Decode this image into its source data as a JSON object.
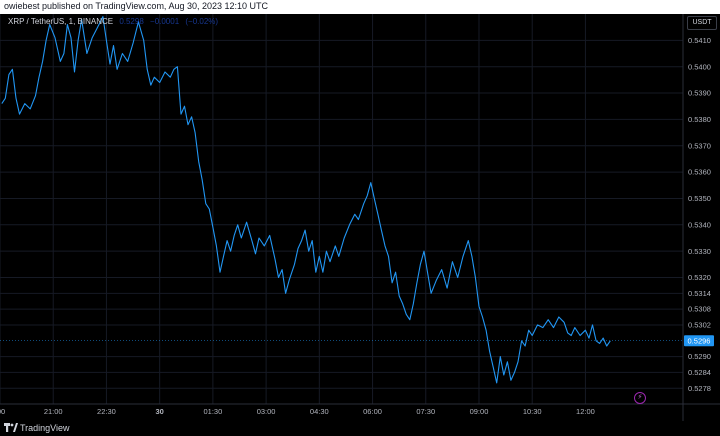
{
  "header": {
    "published_text": "owiebest published on TradingView.com, Aug 30, 2023 12:10 UTC"
  },
  "legend": {
    "symbol_text": "XRP / TetherUS, 1, BINANCE",
    "open": "0.5298",
    "change": "−0.0001",
    "change_pct": "(−0.02%)"
  },
  "currency_label": "USDT",
  "footer": {
    "brand": "TradingView"
  },
  "colors": {
    "line": "#2196f3",
    "price_tag": "#2196f3",
    "grid": "#161a25",
    "background": "#000000"
  },
  "icons": {
    "logo": "tradingview-logo-icon",
    "alert": "lightning-icon"
  },
  "chart_data": {
    "type": "line",
    "symbol": "XRP / TetherUS",
    "interval": "1",
    "exchange": "BINANCE",
    "ylim": [
      0.5272,
      0.542
    ],
    "current_price": 0.5296,
    "current_price_label": "0.5296",
    "y_ticks": [
      {
        "value": 0.541,
        "label": "0.5410"
      },
      {
        "value": 0.54,
        "label": "0.5400"
      },
      {
        "value": 0.539,
        "label": "0.5390"
      },
      {
        "value": 0.538,
        "label": "0.5380"
      },
      {
        "value": 0.537,
        "label": "0.5370"
      },
      {
        "value": 0.536,
        "label": "0.5360"
      },
      {
        "value": 0.535,
        "label": "0.5350"
      },
      {
        "value": 0.534,
        "label": "0.5340"
      },
      {
        "value": 0.533,
        "label": "0.5330"
      },
      {
        "value": 0.532,
        "label": "0.5320"
      },
      {
        "value": 0.5314,
        "label": "0.5314"
      },
      {
        "value": 0.5308,
        "label": "0.5308"
      },
      {
        "value": 0.5302,
        "label": "0.5302"
      },
      {
        "value": 0.529,
        "label": "0.5290"
      },
      {
        "value": 0.5284,
        "label": "0.5284"
      },
      {
        "value": 0.5278,
        "label": "0.5278"
      }
    ],
    "x_ticks": [
      {
        "hours": 0.0,
        "label": ":00",
        "bold": false
      },
      {
        "hours": 1.5,
        "label": "21:00",
        "bold": false
      },
      {
        "hours": 3.0,
        "label": "22:30",
        "bold": false
      },
      {
        "hours": 4.5,
        "label": "30",
        "bold": true
      },
      {
        "hours": 6.0,
        "label": "01:30",
        "bold": false
      },
      {
        "hours": 7.5,
        "label": "03:00",
        "bold": false
      },
      {
        "hours": 9.0,
        "label": "04:30",
        "bold": false
      },
      {
        "hours": 10.5,
        "label": "06:00",
        "bold": false
      },
      {
        "hours": 12.0,
        "label": "07:30",
        "bold": false
      },
      {
        "hours": 13.5,
        "label": "09:00",
        "bold": false
      },
      {
        "hours": 15.0,
        "label": "10:30",
        "bold": false
      },
      {
        "hours": 16.5,
        "label": "12:00",
        "bold": false
      }
    ],
    "xlim_hours": [
      0,
      19.25
    ],
    "series": [
      {
        "points": [
          [
            0.05,
            0.5386
          ],
          [
            0.15,
            0.5388
          ],
          [
            0.25,
            0.5397
          ],
          [
            0.35,
            0.5399
          ],
          [
            0.45,
            0.5388
          ],
          [
            0.55,
            0.5382
          ],
          [
            0.7,
            0.5386
          ],
          [
            0.85,
            0.5384
          ],
          [
            1.0,
            0.5389
          ],
          [
            1.1,
            0.5396
          ],
          [
            1.2,
            0.5402
          ],
          [
            1.3,
            0.541
          ],
          [
            1.4,
            0.5416
          ],
          [
            1.55,
            0.5411
          ],
          [
            1.7,
            0.5402
          ],
          [
            1.8,
            0.5405
          ],
          [
            1.9,
            0.5416
          ],
          [
            2.0,
            0.5411
          ],
          [
            2.1,
            0.5398
          ],
          [
            2.2,
            0.541
          ],
          [
            2.3,
            0.5418
          ],
          [
            2.45,
            0.5405
          ],
          [
            2.6,
            0.5411
          ],
          [
            2.75,
            0.5415
          ],
          [
            2.9,
            0.5419
          ],
          [
            3.0,
            0.541
          ],
          [
            3.1,
            0.5401
          ],
          [
            3.2,
            0.5408
          ],
          [
            3.3,
            0.5399
          ],
          [
            3.45,
            0.5405
          ],
          [
            3.6,
            0.5402
          ],
          [
            3.75,
            0.5409
          ],
          [
            3.9,
            0.5417
          ],
          [
            4.05,
            0.541
          ],
          [
            4.15,
            0.5399
          ],
          [
            4.25,
            0.5393
          ],
          [
            4.35,
            0.5396
          ],
          [
            4.5,
            0.5394
          ],
          [
            4.65,
            0.5398
          ],
          [
            4.8,
            0.5396
          ],
          [
            4.9,
            0.5399
          ],
          [
            5.0,
            0.54
          ],
          [
            5.1,
            0.5382
          ],
          [
            5.2,
            0.5385
          ],
          [
            5.3,
            0.5378
          ],
          [
            5.4,
            0.5381
          ],
          [
            5.5,
            0.5375
          ],
          [
            5.6,
            0.5364
          ],
          [
            5.7,
            0.5357
          ],
          [
            5.8,
            0.5348
          ],
          [
            5.9,
            0.5346
          ],
          [
            6.0,
            0.5339
          ],
          [
            6.1,
            0.5332
          ],
          [
            6.2,
            0.5322
          ],
          [
            6.3,
            0.5328
          ],
          [
            6.4,
            0.5334
          ],
          [
            6.5,
            0.533
          ],
          [
            6.6,
            0.5336
          ],
          [
            6.7,
            0.534
          ],
          [
            6.8,
            0.5335
          ],
          [
            6.95,
            0.5341
          ],
          [
            7.1,
            0.5334
          ],
          [
            7.2,
            0.5329
          ],
          [
            7.3,
            0.5335
          ],
          [
            7.45,
            0.5332
          ],
          [
            7.6,
            0.5336
          ],
          [
            7.75,
            0.5327
          ],
          [
            7.85,
            0.532
          ],
          [
            7.95,
            0.5323
          ],
          [
            8.05,
            0.5314
          ],
          [
            8.15,
            0.5319
          ],
          [
            8.3,
            0.5325
          ],
          [
            8.4,
            0.5331
          ],
          [
            8.5,
            0.5334
          ],
          [
            8.6,
            0.5338
          ],
          [
            8.7,
            0.533
          ],
          [
            8.8,
            0.5334
          ],
          [
            8.9,
            0.5322
          ],
          [
            9.0,
            0.5328
          ],
          [
            9.1,
            0.5322
          ],
          [
            9.2,
            0.533
          ],
          [
            9.3,
            0.5326
          ],
          [
            9.45,
            0.5332
          ],
          [
            9.55,
            0.5328
          ],
          [
            9.7,
            0.5335
          ],
          [
            9.85,
            0.534
          ],
          [
            10.0,
            0.5344
          ],
          [
            10.1,
            0.5342
          ],
          [
            10.25,
            0.5348
          ],
          [
            10.35,
            0.5351
          ],
          [
            10.45,
            0.5356
          ],
          [
            10.55,
            0.535
          ],
          [
            10.65,
            0.5344
          ],
          [
            10.75,
            0.5338
          ],
          [
            10.85,
            0.5332
          ],
          [
            10.95,
            0.5328
          ],
          [
            11.05,
            0.5318
          ],
          [
            11.15,
            0.5322
          ],
          [
            11.25,
            0.5313
          ],
          [
            11.35,
            0.531
          ],
          [
            11.45,
            0.5306
          ],
          [
            11.55,
            0.5304
          ],
          [
            11.65,
            0.531
          ],
          [
            11.75,
            0.5318
          ],
          [
            11.85,
            0.5325
          ],
          [
            11.95,
            0.533
          ],
          [
            12.05,
            0.5322
          ],
          [
            12.15,
            0.5314
          ],
          [
            12.3,
            0.5319
          ],
          [
            12.45,
            0.5323
          ],
          [
            12.6,
            0.5316
          ],
          [
            12.75,
            0.5326
          ],
          [
            12.9,
            0.532
          ],
          [
            13.05,
            0.5328
          ],
          [
            13.2,
            0.5334
          ],
          [
            13.3,
            0.5328
          ],
          [
            13.4,
            0.532
          ],
          [
            13.5,
            0.5309
          ],
          [
            13.6,
            0.5305
          ],
          [
            13.7,
            0.53
          ],
          [
            13.8,
            0.5292
          ],
          [
            13.9,
            0.5286
          ],
          [
            14.0,
            0.528
          ],
          [
            14.1,
            0.529
          ],
          [
            14.2,
            0.5283
          ],
          [
            14.3,
            0.5288
          ],
          [
            14.4,
            0.5281
          ],
          [
            14.5,
            0.5284
          ],
          [
            14.6,
            0.5288
          ],
          [
            14.7,
            0.5296
          ],
          [
            14.8,
            0.5294
          ],
          [
            14.9,
            0.53
          ],
          [
            15.0,
            0.5298
          ],
          [
            15.15,
            0.5302
          ],
          [
            15.3,
            0.5301
          ],
          [
            15.45,
            0.5304
          ],
          [
            15.6,
            0.5301
          ],
          [
            15.75,
            0.5305
          ],
          [
            15.9,
            0.5303
          ],
          [
            16.0,
            0.5299
          ],
          [
            16.1,
            0.5298
          ],
          [
            16.2,
            0.5301
          ],
          [
            16.35,
            0.5298
          ],
          [
            16.5,
            0.53
          ],
          [
            16.6,
            0.5297
          ],
          [
            16.7,
            0.5302
          ],
          [
            16.8,
            0.5296
          ],
          [
            16.9,
            0.5295
          ],
          [
            17.0,
            0.5297
          ],
          [
            17.1,
            0.5294
          ],
          [
            17.2,
            0.5296
          ]
        ]
      }
    ]
  }
}
